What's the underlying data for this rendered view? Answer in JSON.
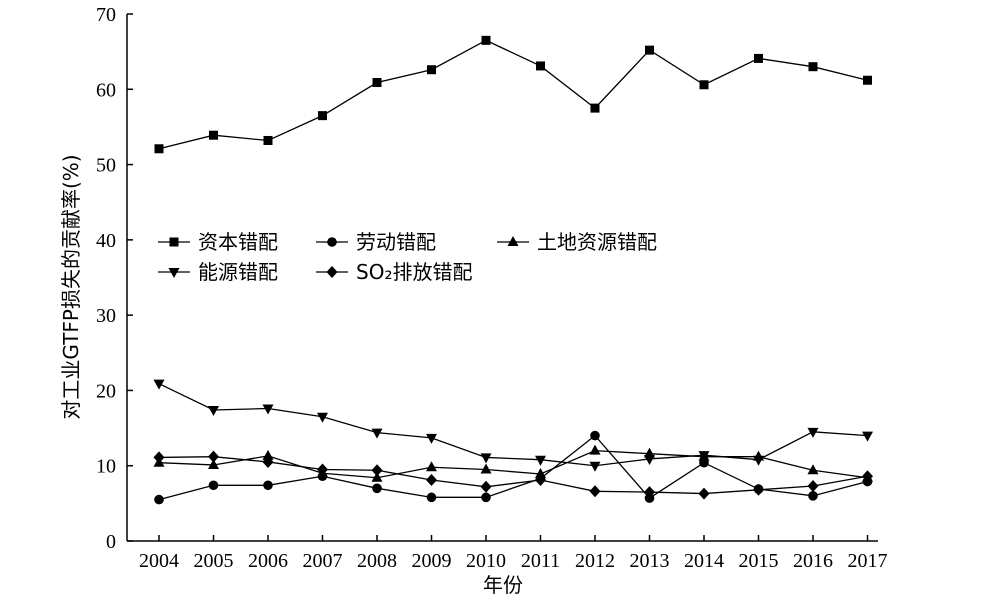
{
  "chart_data": {
    "type": "line",
    "xlabel": "年份",
    "ylabel": "对工业GTFP损失的贡献率(%)",
    "categories": [
      "2004",
      "2005",
      "2006",
      "2007",
      "2008",
      "2009",
      "2010",
      "2011",
      "2012",
      "2013",
      "2014",
      "2015",
      "2016",
      "2017"
    ],
    "ylim": [
      0,
      70
    ],
    "yticks": [
      0,
      10,
      20,
      30,
      40,
      50,
      60,
      70
    ],
    "grid": false,
    "legend_position": "middle-left",
    "series": [
      {
        "name": "资本错配",
        "marker": "square",
        "values": [
          52.1,
          53.9,
          53.2,
          56.5,
          60.9,
          62.6,
          66.5,
          63.1,
          57.5,
          65.2,
          60.6,
          64.1,
          63.0,
          61.2
        ]
      },
      {
        "name": "劳动错配",
        "marker": "circle",
        "values": [
          5.5,
          7.4,
          7.4,
          8.6,
          7.0,
          5.8,
          5.8,
          8.3,
          14.0,
          5.7,
          10.4,
          6.9,
          6.0,
          7.9
        ]
      },
      {
        "name": "土地资源错配",
        "marker": "triangle-up",
        "values": [
          10.4,
          10.1,
          11.3,
          9.0,
          8.4,
          9.8,
          9.5,
          8.9,
          12.0,
          11.6,
          11.2,
          11.2,
          9.4,
          8.4
        ]
      },
      {
        "name": "能源错配",
        "marker": "triangle-down",
        "values": [
          20.9,
          17.4,
          17.6,
          16.5,
          14.4,
          13.7,
          11.1,
          10.8,
          10.0,
          10.9,
          11.4,
          10.8,
          14.5,
          14.0
        ]
      },
      {
        "name": "SO₂排放错配",
        "marker": "diamond",
        "values": [
          11.1,
          11.2,
          10.5,
          9.5,
          9.4,
          8.1,
          7.2,
          8.1,
          6.6,
          6.5,
          6.3,
          6.8,
          7.3,
          8.6
        ]
      }
    ]
  }
}
